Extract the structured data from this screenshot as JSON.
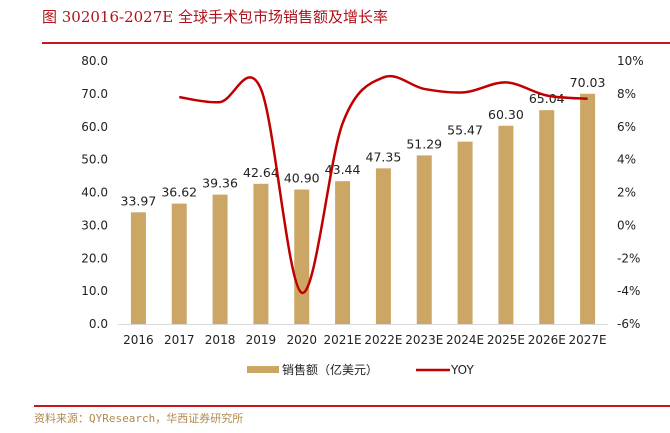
{
  "header": {
    "title": "图 302016-2027E 全球手术包市场销售额及增长率"
  },
  "footer": {
    "source": "资料来源：QYResearch，华西证券研究所"
  },
  "colors": {
    "bar": "#cca664",
    "line": "#c00000",
    "accent": "#c8161d"
  },
  "chart_data": {
    "type": "bar+line",
    "title": "图 302016-2027E 全球手术包市场销售额及增长率",
    "categories": [
      "2016",
      "2017",
      "2018",
      "2019",
      "2020",
      "2021E",
      "2022E",
      "2023E",
      "2024E",
      "2025E",
      "2026E",
      "2027E"
    ],
    "series": [
      {
        "name": "销售额（亿美元）",
        "type": "bar",
        "axis": "left",
        "values": [
          33.97,
          36.62,
          39.36,
          42.64,
          40.9,
          43.44,
          47.35,
          51.29,
          55.47,
          60.3,
          65.04,
          70.03
        ],
        "labels": [
          "33.97",
          "36.62",
          "39.36",
          "42.64",
          "40.90",
          "43.44",
          "47.35",
          "51.29",
          "55.47",
          "60.30",
          "65.04",
          "70.03"
        ]
      },
      {
        "name": "YOY",
        "type": "line",
        "axis": "right",
        "smooth": true,
        "values": [
          null,
          7.8,
          7.5,
          8.3,
          -4.1,
          6.2,
          9.0,
          8.3,
          8.1,
          8.7,
          7.9,
          7.7
        ]
      }
    ],
    "y_left": {
      "range": [
        0,
        80
      ],
      "ticks": [
        "0.0",
        "10.0",
        "20.0",
        "30.0",
        "40.0",
        "50.0",
        "60.0",
        "70.0",
        "80.0"
      ]
    },
    "y_right": {
      "range": [
        -6,
        10
      ],
      "unit": "%",
      "ticks": [
        "-6%",
        "-4%",
        "-2%",
        "0%",
        "2%",
        "4%",
        "6%",
        "8%",
        "10%"
      ]
    },
    "grid": false,
    "legend": {
      "position": "bottom",
      "items": [
        {
          "label": "销售额（亿美元）",
          "kind": "bar"
        },
        {
          "label": "YOY",
          "kind": "line"
        }
      ]
    }
  }
}
